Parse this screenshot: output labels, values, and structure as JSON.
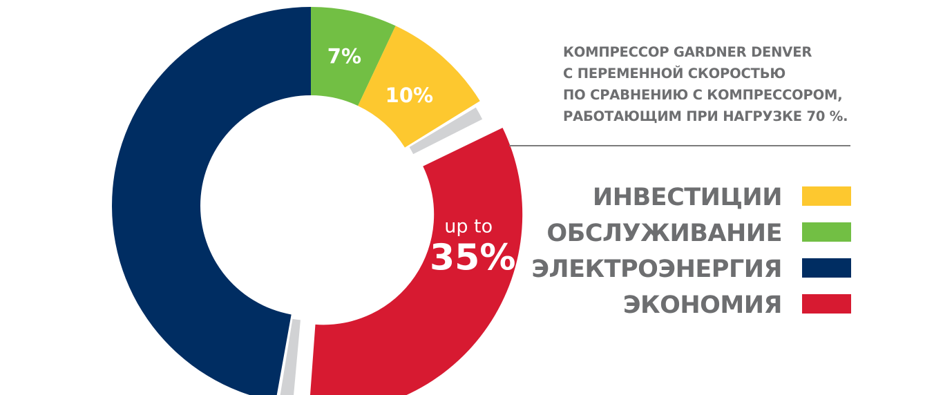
{
  "chart_data": {
    "type": "pie",
    "title": "",
    "description_lines": [
      "КОМПРЕССОР GARDNER DENVER",
      "С ПЕРЕМЕННОЙ СКОРОСТЬЮ",
      "ПО СРАВНЕНИЮ С КОМПРЕССОРОМ,",
      "РАБОТАЮЩИМ ПРИ НАГРУЗКЕ 70 %."
    ],
    "slices": [
      {
        "key": "maintenance",
        "label": "7%",
        "value": 7,
        "color": "#72bf44"
      },
      {
        "key": "investment",
        "label": "10%",
        "value": 10,
        "color": "#fdc82f"
      },
      {
        "key": "savings",
        "label_prefix": "up to",
        "label": "35%",
        "value": 35,
        "color": "#d71a31",
        "exploded": true
      },
      {
        "key": "energy",
        "value": 48,
        "color": "#002d62"
      }
    ],
    "gap_color": "#d1d2d4",
    "legend_placement": "right",
    "legend": [
      {
        "label": "ИНВЕСТИЦИИ",
        "color": "#fdc82f"
      },
      {
        "label": "ОБСЛУЖИВАНИЕ",
        "color": "#72bf44"
      },
      {
        "label": "ЭЛЕКТРОЭНЕРГИЯ",
        "color": "#002d62"
      },
      {
        "label": "ЭКОНОМИЯ",
        "color": "#d71a31"
      }
    ]
  }
}
